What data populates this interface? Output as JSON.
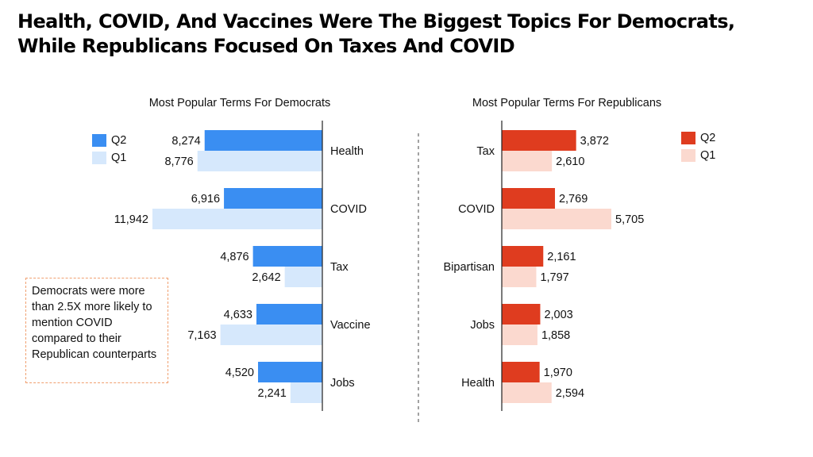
{
  "title_line1": "Health, COVID, And Vaccines Were The Biggest Topics For Democrats,",
  "title_line2": "While Republicans Focused On Taxes And COVID",
  "callout_text": "Democrats were more than 2.5X more likely to mention COVID compared to their Republican counterparts",
  "colors": {
    "dem_q2": "#3a8ef2",
    "dem_q1": "#d6e8fc",
    "rep_q2": "#df3c1f",
    "rep_q1": "#fbd9cf"
  },
  "chart_data": [
    {
      "type": "bar",
      "orientation": "horizontal",
      "title": "Most Popular Terms For Democrats",
      "categories": [
        "Health",
        "COVID",
        "Tax",
        "Vaccine",
        "Jobs"
      ],
      "series": [
        {
          "name": "Q2",
          "values": [
            8274,
            6916,
            4876,
            4633,
            4520
          ],
          "labels": [
            "8,274",
            "6,916",
            "4,876",
            "4,633",
            "4,520"
          ]
        },
        {
          "name": "Q1",
          "values": [
            8776,
            11942,
            2642,
            7163,
            2241
          ],
          "labels": [
            "8,776",
            "11,942",
            "2,642",
            "7,163",
            "2,241"
          ]
        }
      ],
      "direction": "leftward",
      "legend": "top-left"
    },
    {
      "type": "bar",
      "orientation": "horizontal",
      "title": "Most Popular Terms For Republicans",
      "categories": [
        "Tax",
        "COVID",
        "Bipartisan",
        "Jobs",
        "Health"
      ],
      "series": [
        {
          "name": "Q2",
          "values": [
            3872,
            2769,
            2161,
            2003,
            1970
          ],
          "labels": [
            "3,872",
            "2,769",
            "2,161",
            "2,003",
            "1,970"
          ]
        },
        {
          "name": "Q1",
          "values": [
            2610,
            5705,
            1797,
            1858,
            2594
          ],
          "labels": [
            "2,610",
            "5,705",
            "1,797",
            "1,858",
            "2,594"
          ]
        }
      ],
      "direction": "rightward",
      "legend": "top-right"
    }
  ]
}
